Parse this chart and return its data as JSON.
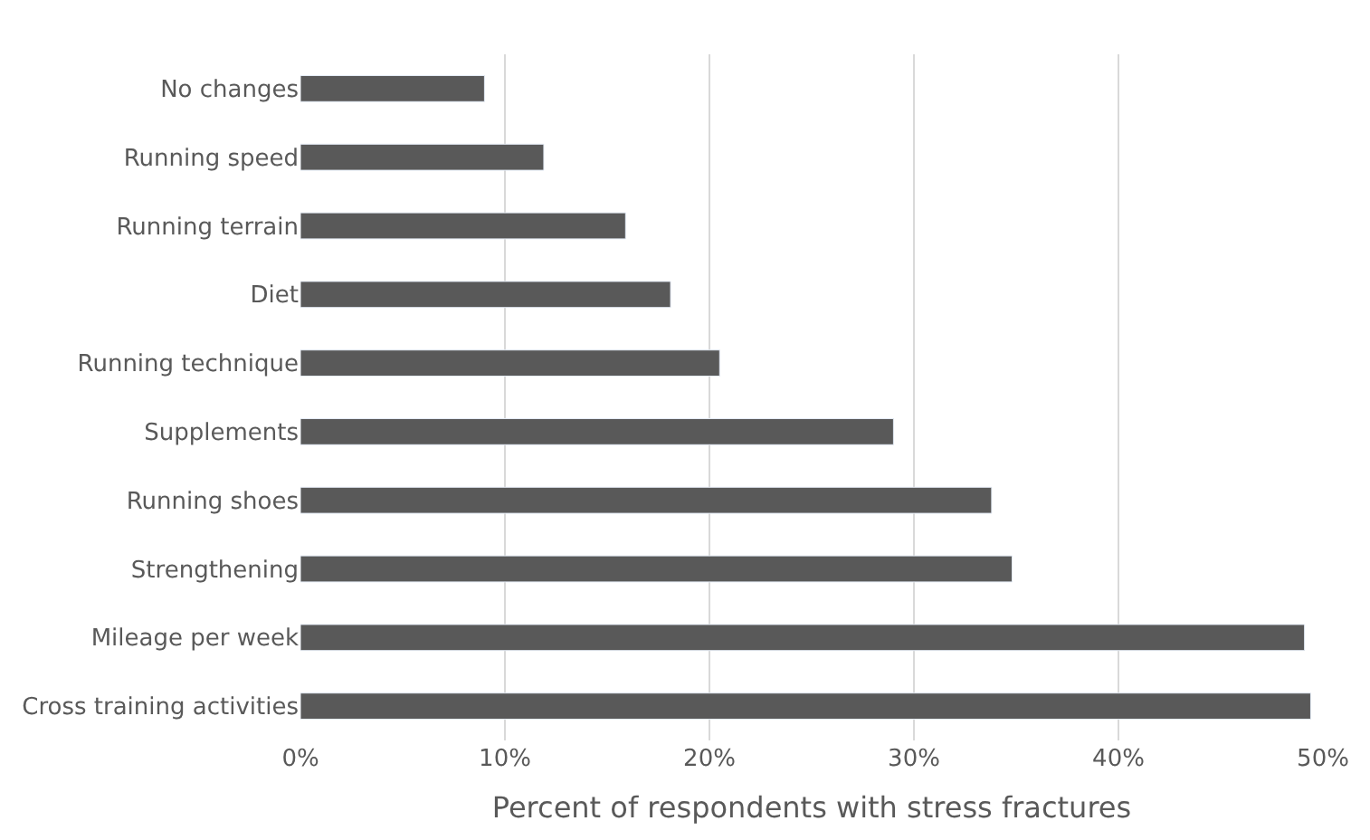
{
  "chart_data": {
    "type": "bar",
    "orientation": "horizontal",
    "xlabel": "Percent of respondents with stress fractures",
    "categories": [
      "No changes",
      "Running speed",
      "Running terrain",
      "Diet",
      "Running technique",
      "Supplements",
      "Running shoes",
      "Strengthening",
      "Mileage per week",
      "Cross training activities"
    ],
    "values": [
      9.0,
      11.9,
      15.9,
      18.1,
      20.5,
      29.0,
      33.8,
      34.8,
      49.1,
      49.4
    ],
    "color": "#595959",
    "xlim": [
      0,
      50
    ],
    "xticks": [
      {
        "value": 0,
        "label": "0%"
      },
      {
        "value": 10,
        "label": "10%"
      },
      {
        "value": 20,
        "label": "20%"
      },
      {
        "value": 30,
        "label": "30%"
      },
      {
        "value": 40,
        "label": "40%"
      },
      {
        "value": 50,
        "label": "50%"
      }
    ],
    "grid": "x"
  }
}
